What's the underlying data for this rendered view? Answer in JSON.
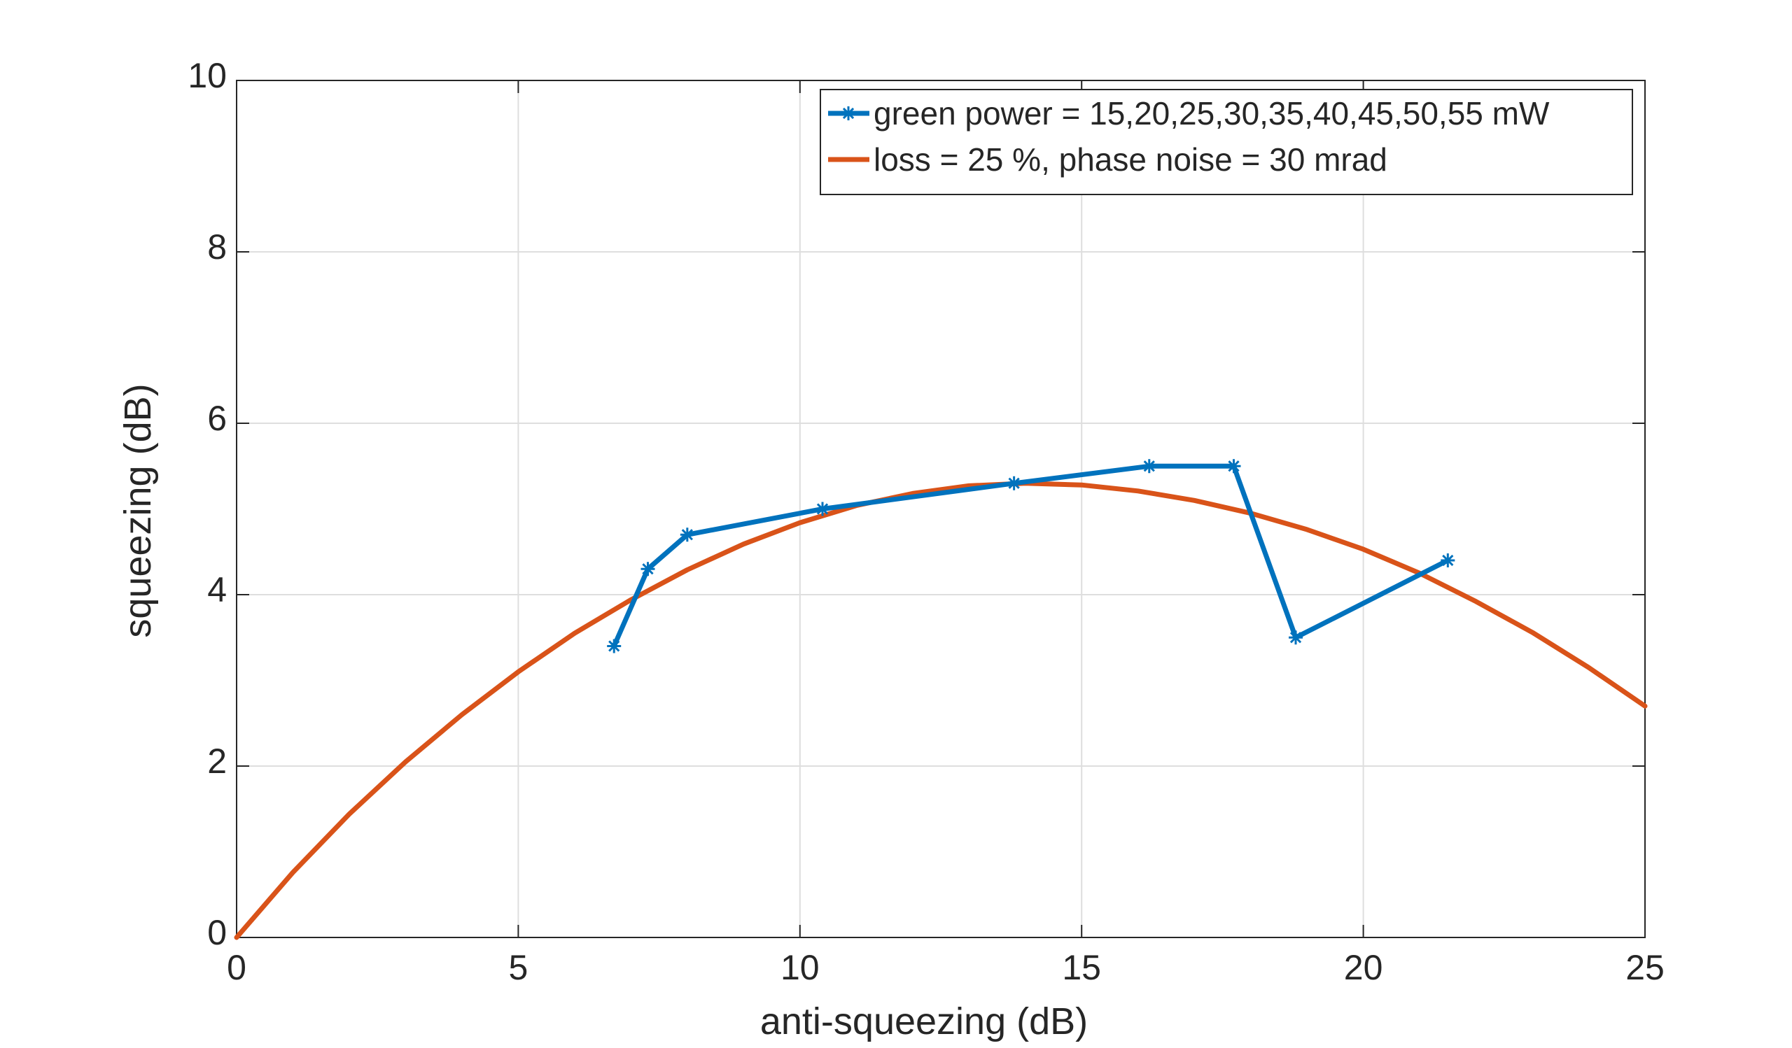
{
  "chart_data": {
    "type": "line",
    "xlabel": "anti-squeezing (dB)",
    "ylabel": "squeezing (dB)",
    "xlim": [
      0,
      25
    ],
    "ylim": [
      0,
      10
    ],
    "xticks": [
      0,
      5,
      10,
      15,
      20,
      25
    ],
    "yticks": [
      0,
      2,
      4,
      6,
      8,
      10
    ],
    "xtick_labels": [
      "0",
      "5",
      "10",
      "15",
      "20",
      "25"
    ],
    "ytick_labels": [
      "0",
      "2",
      "4",
      "6",
      "8",
      "10"
    ],
    "grid": true,
    "legend_position": "top-right",
    "series": [
      {
        "name": "green power = 15,20,25,30,35,40,45,50,55 mW",
        "color": "#0072BD",
        "marker": "asterisk",
        "x": [
          6.7,
          7.3,
          8.0,
          10.4,
          13.8,
          16.2,
          17.7,
          18.8,
          21.5
        ],
        "y": [
          3.4,
          4.3,
          4.7,
          5.0,
          5.3,
          5.5,
          5.5,
          3.5,
          4.4
        ]
      },
      {
        "name": "loss = 25 %, phase noise = 30 mrad",
        "color": "#D95319",
        "marker": "none",
        "x": [
          0,
          1,
          2,
          3,
          4,
          5,
          6,
          7,
          8,
          9,
          10,
          11,
          12,
          13,
          14,
          15,
          16,
          17,
          18,
          19,
          20,
          21,
          22,
          23,
          24,
          25
        ],
        "y": [
          0,
          0.76,
          1.44,
          2.05,
          2.6,
          3.1,
          3.55,
          3.94,
          4.29,
          4.59,
          4.84,
          5.04,
          5.18,
          5.27,
          5.3,
          5.28,
          5.21,
          5.1,
          4.95,
          4.76,
          4.53,
          4.25,
          3.92,
          3.56,
          3.15,
          2.7
        ]
      }
    ]
  }
}
